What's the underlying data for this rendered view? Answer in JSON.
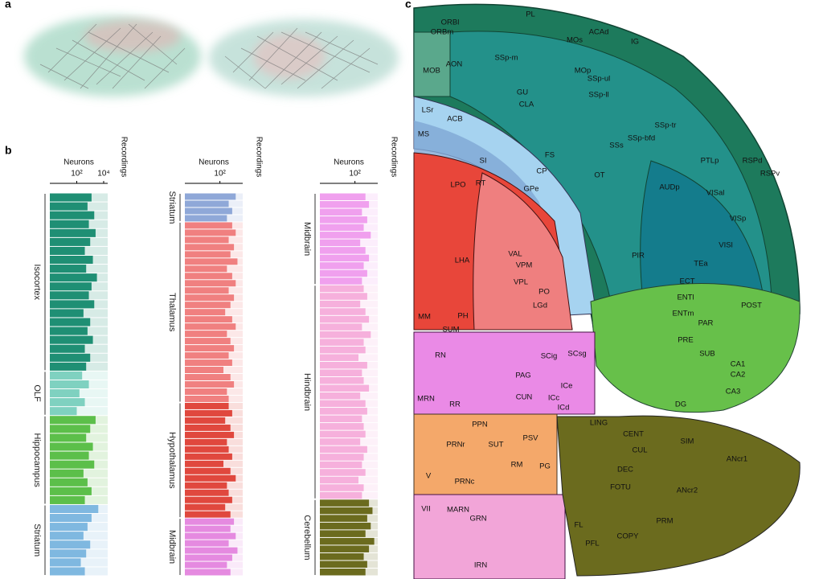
{
  "panels": {
    "a": "a",
    "b": "b",
    "c": "c"
  },
  "panel_b": {
    "axis_title": "Neurons",
    "recordings_title": "Recordings",
    "columns": [
      {
        "xlim": [
          0,
          4.3
        ],
        "ticks": [
          {
            "value": 2,
            "label": "10²"
          },
          {
            "value": 4,
            "label": "10⁴"
          }
        ],
        "groups": [
          {
            "name": "Isocortex",
            "color": "#1f8f74",
            "values": [
              3.1,
              2.8,
              3.3,
              2.9,
              3.4,
              3.0,
              2.6,
              3.2,
              2.7,
              3.5,
              3.1,
              2.9,
              3.3,
              2.5,
              3.0,
              2.8,
              3.2,
              2.6,
              3.0,
              2.7
            ]
          },
          {
            "name": "OLF",
            "color": "#7fd1c0",
            "values": [
              2.4,
              2.9,
              2.2,
              2.6,
              2.0
            ]
          },
          {
            "name": "Hippocampus",
            "color": "#5cbf4a",
            "values": [
              3.4,
              3.0,
              2.7,
              3.2,
              2.9,
              3.3,
              2.5,
              2.8,
              3.1,
              2.6
            ]
          },
          {
            "name": "Striatum",
            "color": "#7fb8e0",
            "values": [
              3.6,
              3.1,
              2.8,
              2.5,
              3.0,
              2.7,
              2.3,
              2.6
            ]
          }
        ]
      },
      {
        "xlim": [
          0,
          3.3
        ],
        "ticks": [
          {
            "value": 2,
            "label": "10²"
          }
        ],
        "groups": [
          {
            "name": "Striatum",
            "color": "#8fa8d8",
            "values": [
              2.9,
              2.5,
              2.7,
              2.4
            ]
          },
          {
            "name": "Thalamus",
            "color": "#f08080",
            "values": [
              2.7,
              2.9,
              2.5,
              2.8,
              2.6,
              3.0,
              2.4,
              2.7,
              2.9,
              2.5,
              2.8,
              2.6,
              2.3,
              2.7,
              2.9,
              2.4,
              2.6,
              2.8,
              2.5,
              2.7,
              2.2,
              2.6,
              2.8,
              2.4,
              2.5
            ]
          },
          {
            "name": "Hypothalamus",
            "color": "#e0483e",
            "values": [
              2.5,
              2.7,
              2.3,
              2.6,
              2.8,
              2.4,
              2.5,
              2.7,
              2.2,
              2.6,
              2.9,
              2.4,
              2.5,
              2.7,
              2.3,
              2.6
            ]
          },
          {
            "name": "Midbrain",
            "color": "#e58ae0",
            "values": [
              2.8,
              2.6,
              2.9,
              2.5,
              3.0,
              2.7,
              2.4,
              2.6
            ]
          }
        ]
      },
      {
        "xlim": [
          0,
          3.3
        ],
        "ticks": [
          {
            "value": 2,
            "label": "10²"
          }
        ],
        "groups": [
          {
            "name": "Midbrain",
            "color": "#f0a0ee",
            "values": [
              2.6,
              2.8,
              2.4,
              2.7,
              2.5,
              2.9,
              2.3,
              2.6,
              2.8,
              2.5,
              2.7,
              2.4
            ]
          },
          {
            "name": "Hindbrain",
            "color": "#f6b0dc",
            "values": [
              2.5,
              2.7,
              2.3,
              2.6,
              2.8,
              2.4,
              2.9,
              2.5,
              2.6,
              2.2,
              2.7,
              2.4,
              2.5,
              2.8,
              2.3,
              2.6,
              2.7,
              2.4,
              2.5,
              2.6,
              2.3,
              2.7,
              2.5,
              2.4,
              2.6,
              2.2,
              2.5,
              2.4
            ]
          },
          {
            "name": "Cerebellum",
            "color": "#6b6b1e",
            "values": [
              2.8,
              3.0,
              2.7,
              2.9,
              2.6,
              3.1,
              2.8,
              2.5,
              2.7,
              2.6
            ]
          }
        ]
      }
    ]
  },
  "panel_c": {
    "labels": [
      "ORBl",
      "ORBm",
      "PL",
      "MOs",
      "ACAd",
      "IG",
      "MOB",
      "AON",
      "SSp-m",
      "MOp",
      "SSp-ul",
      "SSp-ll",
      "GU",
      "CLA",
      "LSr",
      "ACB",
      "SSp-tr",
      "SSp-bfd",
      "SSs",
      "RSPd",
      "RSPv",
      "MS",
      "SI",
      "FS",
      "CP",
      "OT",
      "GPe",
      "LPO",
      "RT",
      "PTLp",
      "AUDp",
      "VISal",
      "VISp",
      "VISl",
      "PIR",
      "TEa",
      "ECT",
      "ENTl",
      "ENTm",
      "POST",
      "PAR",
      "PRE",
      "SUB",
      "CA1",
      "CA2",
      "CA3",
      "DG",
      "LHA",
      "VPM",
      "VPL",
      "VAL",
      "LGd",
      "PO",
      "MM",
      "PH",
      "SUM",
      "RN",
      "SCig",
      "SCsg",
      "PAG",
      "CUN",
      "ICe",
      "ICc",
      "ICd",
      "MRN",
      "RR",
      "PPN",
      "PRNr",
      "SUT",
      "RM",
      "PG",
      "PSV",
      "PRNc",
      "V",
      "LING",
      "CENT",
      "CUL",
      "SIM",
      "ANcr1",
      "DEC",
      "FOTU",
      "ANcr2",
      "PRM",
      "COPY",
      "PFL",
      "FL",
      "GRN",
      "MARN",
      "VII",
      "IRN"
    ]
  }
}
